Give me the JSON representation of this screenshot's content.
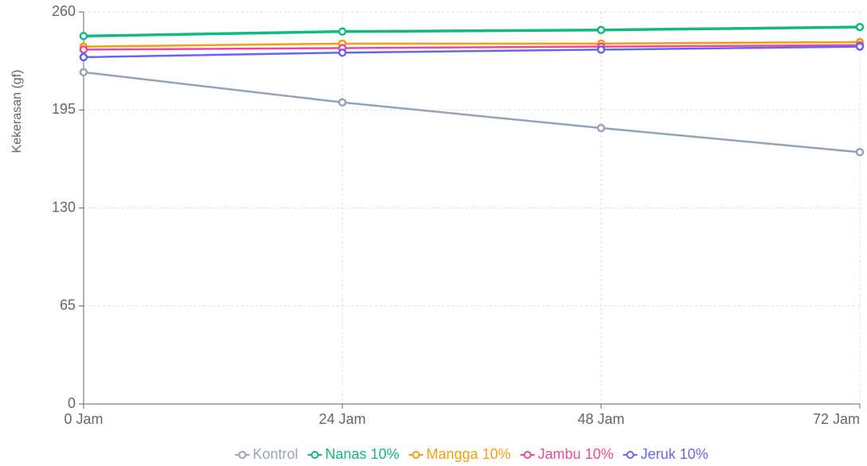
{
  "chart_data": {
    "type": "line",
    "y_label": "Kekerasan (gf)",
    "categories": [
      "0 Jam",
      "24 Jam",
      "48 Jam",
      "72 Jam"
    ],
    "series": [
      {
        "name": "Kontrol",
        "color": "#94a3b8",
        "values": [
          220,
          200,
          183,
          167
        ]
      },
      {
        "name": "Nanas 10%",
        "color": "#10b981",
        "values": [
          244,
          247,
          248,
          250
        ]
      },
      {
        "name": "Mangga 10%",
        "color": "#f59e0b",
        "values": [
          237,
          239,
          239,
          240
        ]
      },
      {
        "name": "Jambu 10%",
        "color": "#ec4899",
        "values": [
          235,
          236,
          237,
          238
        ]
      },
      {
        "name": "Jeruk 10%",
        "color": "#6366f1",
        "values": [
          230,
          233,
          235,
          237
        ]
      }
    ],
    "ylim": [
      0,
      260
    ],
    "yticks": [
      0,
      65,
      130,
      195,
      260
    ],
    "grid": true,
    "legend": "bottom"
  }
}
